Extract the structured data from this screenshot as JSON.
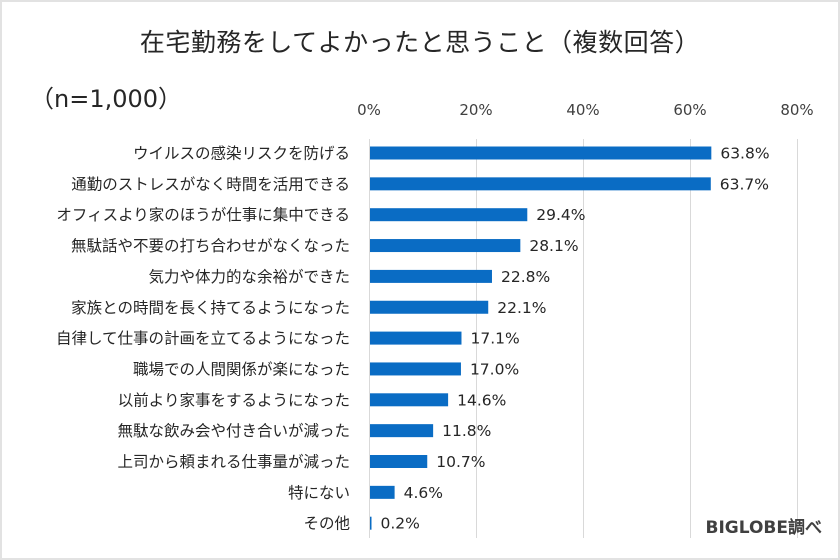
{
  "title": "在宅勤務をしてよかったと思うこと（複数回答）",
  "sample_size": "（n=1,000）",
  "source": "BIGLOBE調べ",
  "colors": {
    "bar": "#0A6CC4",
    "grid": "#d9d9d9",
    "text": "#262626"
  },
  "chart_data": {
    "type": "bar",
    "orientation": "horizontal",
    "title": "在宅勤務をしてよかったと思うこと（複数回答）",
    "xlabel": "",
    "ylabel": "",
    "xlim": [
      0,
      80
    ],
    "x_ticks": [
      0,
      20,
      40,
      60,
      80
    ],
    "x_tick_labels": [
      "0%",
      "20%",
      "40%",
      "60%",
      "80%"
    ],
    "x_axis_position": "top",
    "grid": true,
    "legend": "none",
    "categories": [
      "ウイルスの感染リスクを防げる",
      "通勤のストレスがなく時間を活用できる",
      "オフィスより家のほうが仕事に集中できる",
      "無駄話や不要の打ち合わせがなくなった",
      "気力や体力的な余裕ができた",
      "家族との時間を長く持てるようになった",
      "自律して仕事の計画を立てるようになった",
      "職場での人間関係が楽になった",
      "以前より家事をするようになった",
      "無駄な飲み会や付き合いが減った",
      "上司から頼まれる仕事量が減った",
      "特にない",
      "その他"
    ],
    "values": [
      63.8,
      63.7,
      29.4,
      28.1,
      22.8,
      22.1,
      17.1,
      17.0,
      14.6,
      11.8,
      10.7,
      4.6,
      0.2
    ],
    "value_labels": [
      "63.8%",
      "63.7%",
      "29.4%",
      "28.1%",
      "22.8%",
      "22.1%",
      "17.1%",
      "17.0%",
      "14.6%",
      "11.8%",
      "10.7%",
      "4.6%",
      "0.2%"
    ],
    "unit": "%"
  }
}
